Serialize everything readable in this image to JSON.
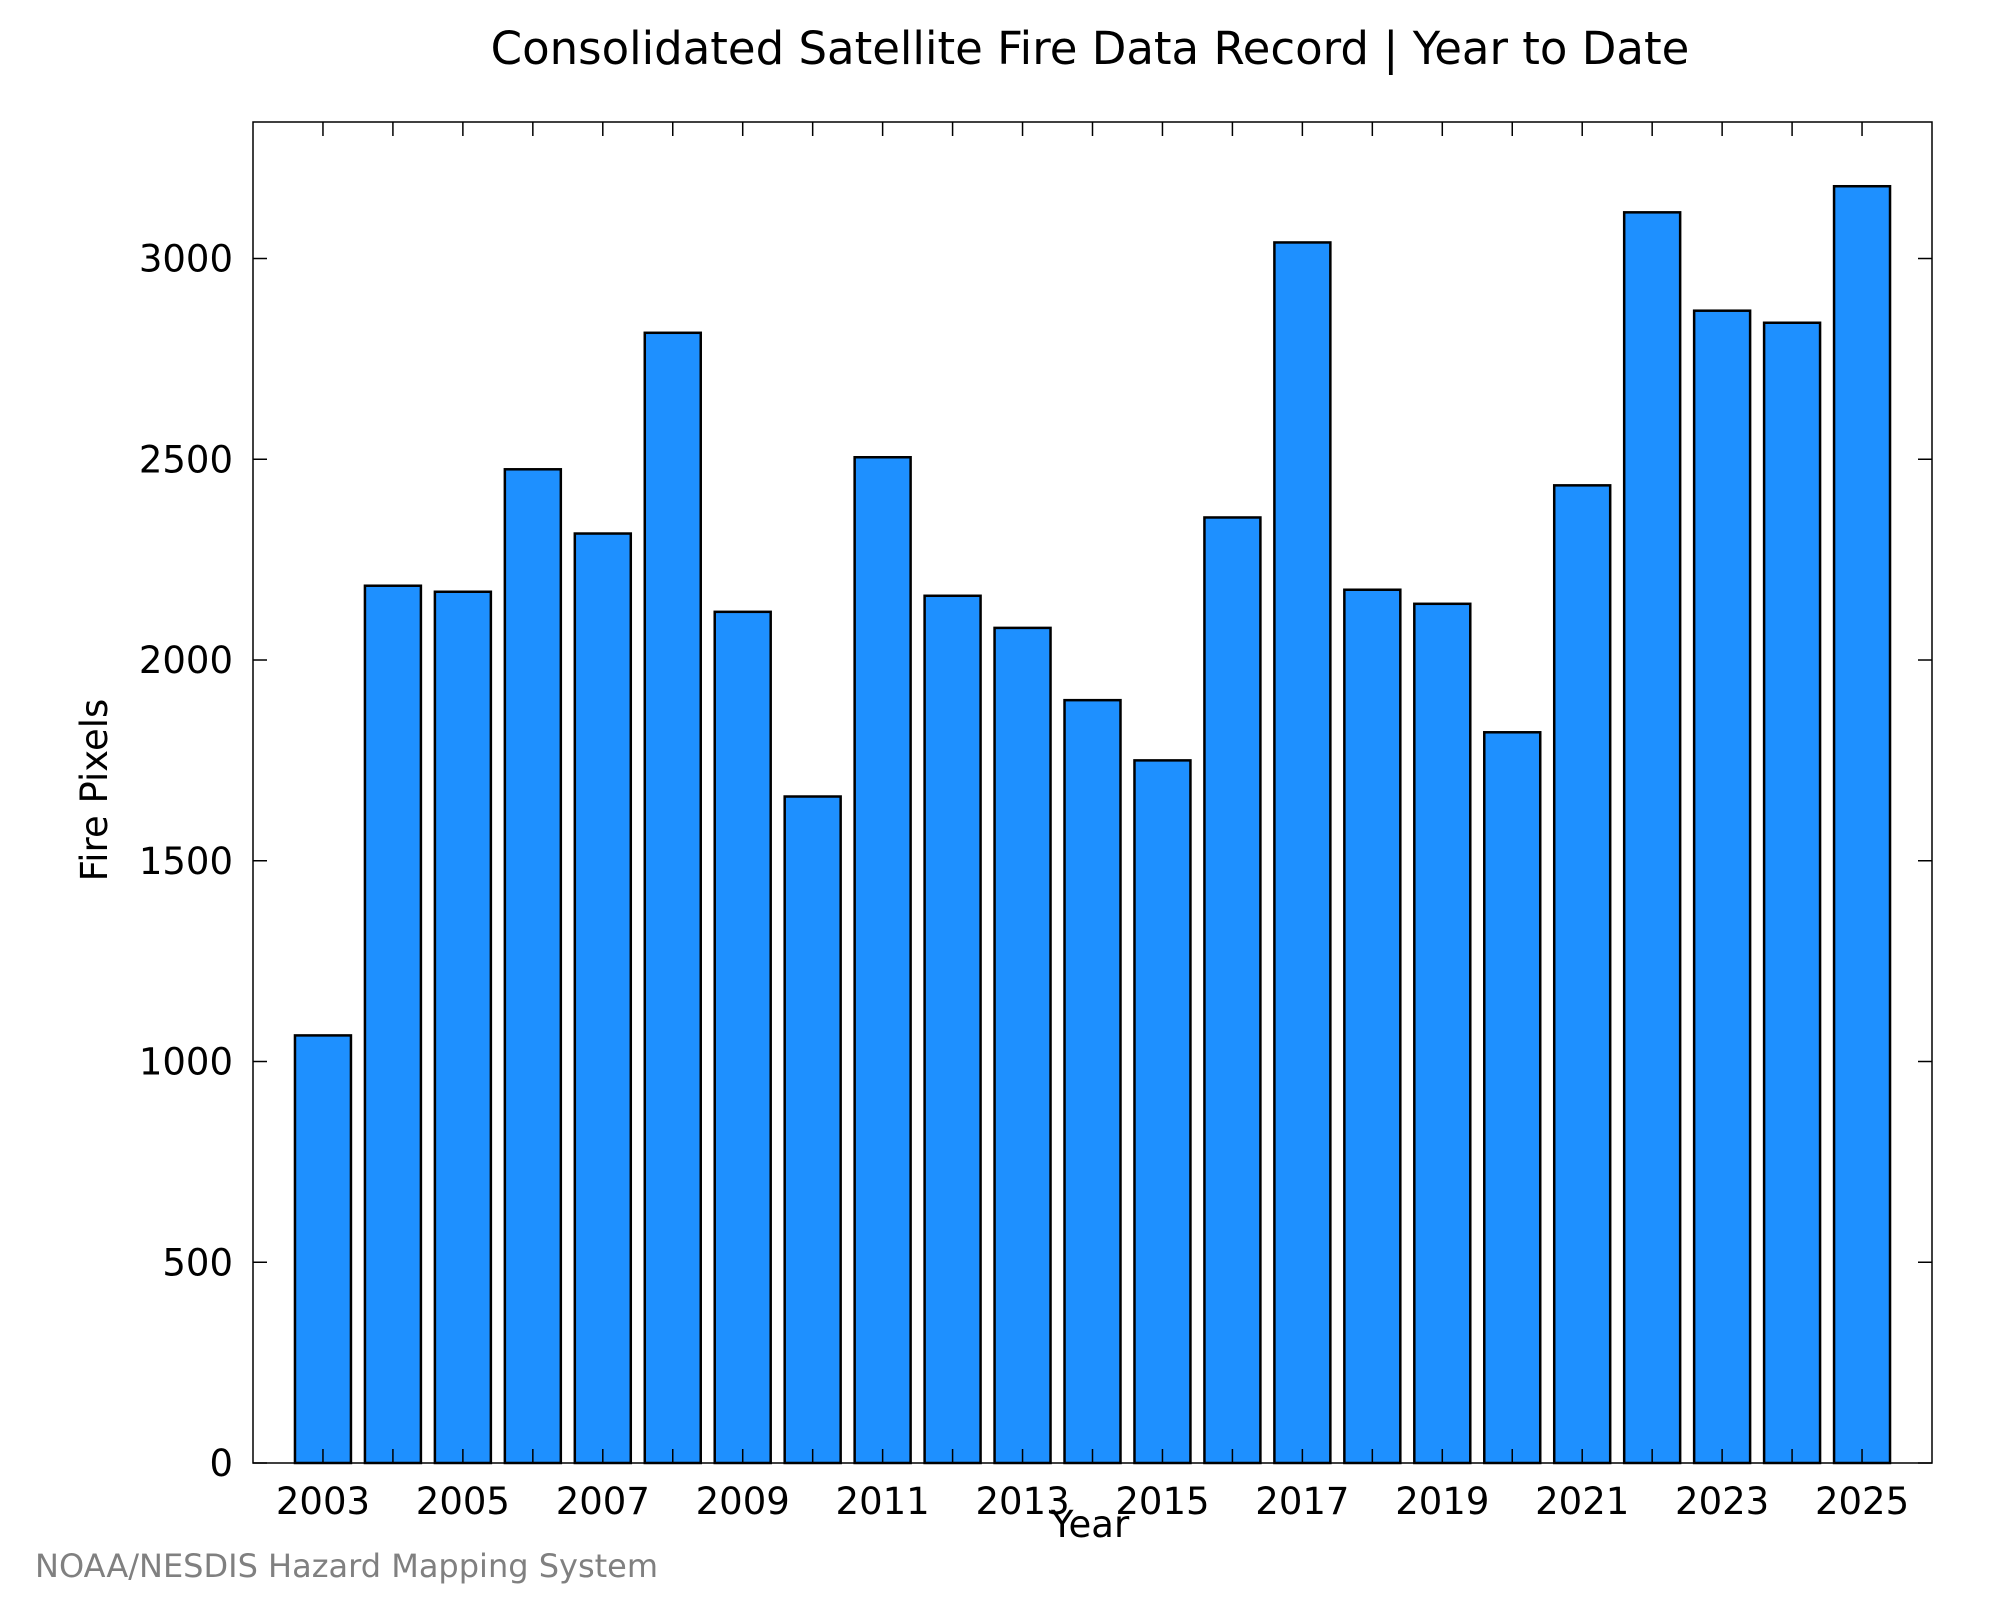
{
  "colors": {
    "bar_fill": "#1e90ff",
    "bar_stroke": "#000000",
    "axis": "#000000",
    "background": "#ffffff",
    "credit": "#808080"
  },
  "chart_data": {
    "type": "bar",
    "title": "Consolidated Satellite Fire Data Record | Year to Date",
    "xlabel": "Year",
    "ylabel": "Fire Pixels",
    "categories": [
      "2003",
      "2004",
      "2005",
      "2006",
      "2007",
      "2008",
      "2009",
      "2010",
      "2011",
      "2012",
      "2013",
      "2014",
      "2015",
      "2016",
      "2017",
      "2018",
      "2019",
      "2020",
      "2021",
      "2022",
      "2023",
      "2024",
      "2025"
    ],
    "values": [
      1065,
      2185,
      2170,
      2475,
      2315,
      2815,
      2120,
      1660,
      2505,
      2160,
      2080,
      1900,
      1750,
      2355,
      3040,
      2175,
      2140,
      1820,
      2435,
      3115,
      2870,
      2840,
      3180
    ],
    "x_tick_labels": [
      "2003",
      "2005",
      "2007",
      "2009",
      "2011",
      "2013",
      "2015",
      "2017",
      "2019",
      "2021",
      "2023",
      "2025"
    ],
    "y_ticks": [
      0,
      500,
      1000,
      1500,
      2000,
      2500,
      3000
    ],
    "ylim": [
      0,
      3340
    ],
    "grid": false,
    "legend": "none"
  },
  "credit": "NOAA/NESDIS Hazard Mapping System"
}
